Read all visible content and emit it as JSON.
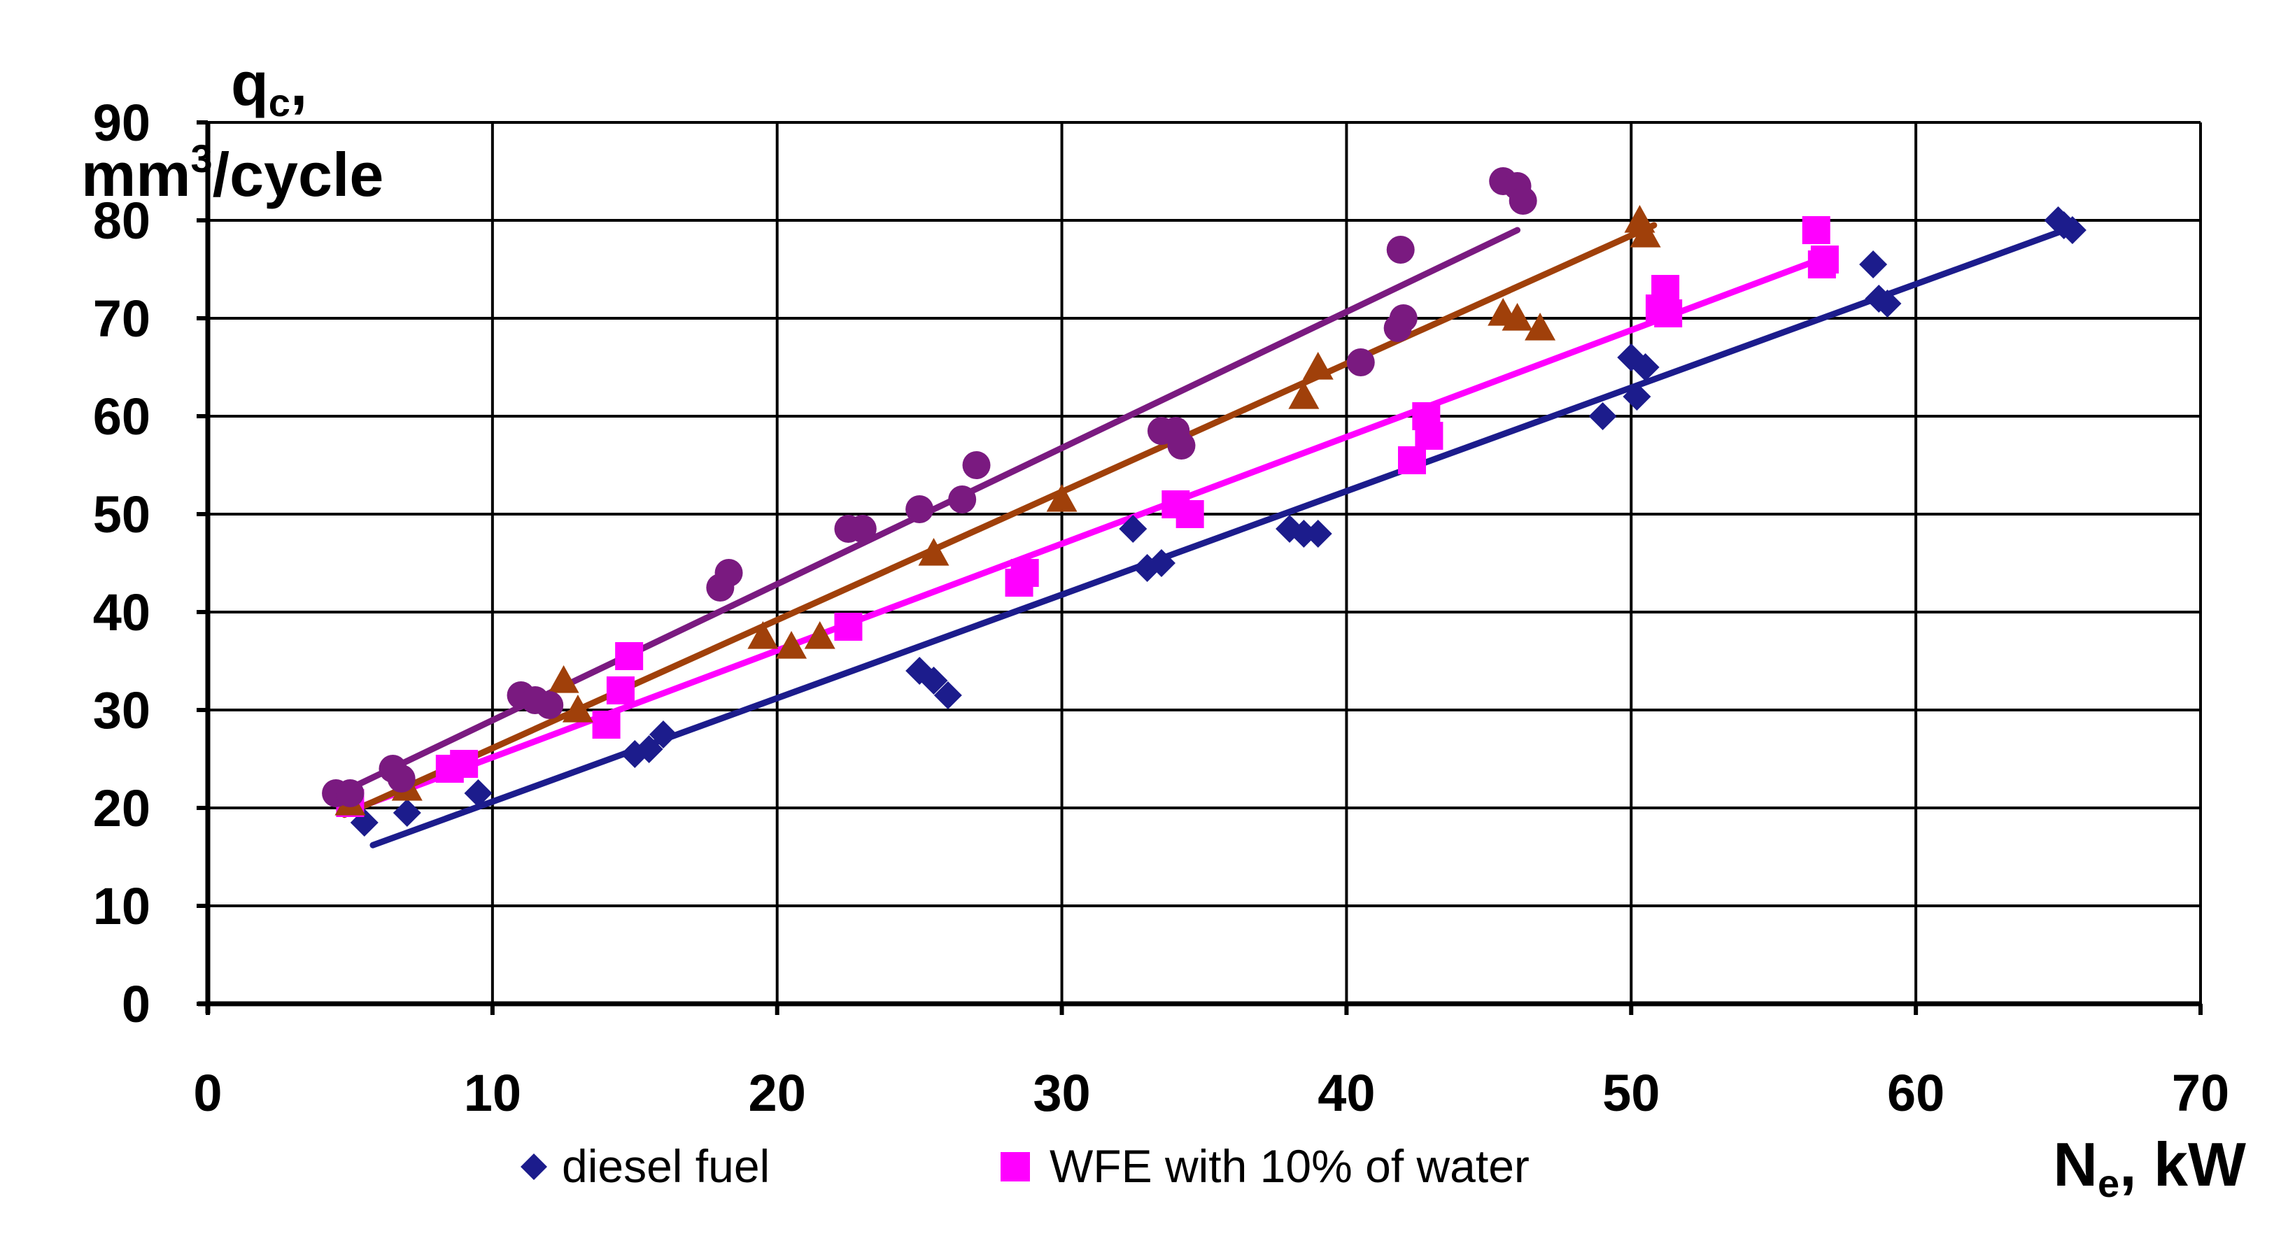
{
  "chart_data": {
    "type": "scatter",
    "title": "",
    "ylabel": {
      "symbol": "q",
      "subscript": "c",
      "suffix": ",",
      "unit_prefix": "mm",
      "unit_sup": "3",
      "unit_suffix": "/cycle"
    },
    "xlabel": {
      "symbol": "N",
      "subscript": "e",
      "suffix": ", kW"
    },
    "xlim": [
      0,
      70
    ],
    "ylim": [
      0,
      90
    ],
    "x_ticks": [
      0,
      10,
      20,
      30,
      40,
      50,
      60,
      70
    ],
    "y_ticks": [
      0,
      10,
      20,
      30,
      40,
      50,
      60,
      70,
      80,
      90
    ],
    "grid": true,
    "series": [
      {
        "name": "diesel fuel",
        "marker": "diamond",
        "color": "#1c1c8c",
        "points": [
          [
            5.5,
            18.5
          ],
          [
            7,
            19.5
          ],
          [
            9.5,
            21.5
          ],
          [
            15,
            25.5
          ],
          [
            15.5,
            26
          ],
          [
            16,
            27.5
          ],
          [
            25,
            34
          ],
          [
            25.5,
            33
          ],
          [
            26,
            31.5
          ],
          [
            32.5,
            48.5
          ],
          [
            33,
            44.5
          ],
          [
            33.5,
            45
          ],
          [
            38,
            48.5
          ],
          [
            38.5,
            48
          ],
          [
            39,
            48
          ],
          [
            49,
            60
          ],
          [
            50,
            66
          ],
          [
            50.2,
            62
          ],
          [
            50.5,
            65
          ],
          [
            58.5,
            75.5
          ],
          [
            58.7,
            72
          ],
          [
            59,
            71.5
          ],
          [
            65,
            80
          ],
          [
            65.2,
            79.5
          ],
          [
            65.5,
            79
          ]
        ],
        "trend": [
          [
            5.8,
            16.2
          ],
          [
            65.5,
            79.3
          ]
        ]
      },
      {
        "name": "WFE with 10% of water",
        "marker": "square",
        "color": "#ff00ff",
        "points": [
          [
            5,
            20.5
          ],
          [
            8.5,
            24
          ],
          [
            9,
            24.5
          ],
          [
            14,
            28.5
          ],
          [
            14.5,
            32
          ],
          [
            14.8,
            35.5
          ],
          [
            22.5,
            38.5
          ],
          [
            28.5,
            43
          ],
          [
            28.7,
            44
          ],
          [
            34,
            51
          ],
          [
            34.5,
            50
          ],
          [
            42.3,
            55.5
          ],
          [
            42.8,
            60
          ],
          [
            42.9,
            58
          ],
          [
            51,
            71
          ],
          [
            51.2,
            73
          ],
          [
            51.3,
            70.5
          ],
          [
            56.5,
            79
          ],
          [
            56.7,
            75.5
          ],
          [
            56.8,
            76
          ]
        ],
        "trend": [
          [
            4.8,
            19.5
          ],
          [
            56.8,
            76.2
          ]
        ]
      },
      {
        "name": "",
        "marker": "triangle",
        "color": "#a0400a",
        "points": [
          [
            5,
            20.5
          ],
          [
            7,
            22
          ],
          [
            12.5,
            33
          ],
          [
            13,
            30
          ],
          [
            19.5,
            37.5
          ],
          [
            20.5,
            36.5
          ],
          [
            21.5,
            37.5
          ],
          [
            25.5,
            46
          ],
          [
            30,
            51.5
          ],
          [
            38.5,
            62
          ],
          [
            39,
            65
          ],
          [
            45.5,
            70.5
          ],
          [
            46,
            70
          ],
          [
            46.8,
            69
          ],
          [
            50.3,
            80
          ],
          [
            50.5,
            78.5
          ]
        ],
        "trend": [
          [
            4.8,
            19.3
          ],
          [
            50.8,
            79.5
          ]
        ]
      },
      {
        "name": "",
        "marker": "circle",
        "color": "#7a1a80",
        "points": [
          [
            4.5,
            21.5
          ],
          [
            5,
            21.5
          ],
          [
            6.5,
            24
          ],
          [
            6.8,
            23
          ],
          [
            11,
            31.5
          ],
          [
            11.5,
            31
          ],
          [
            12,
            30.5
          ],
          [
            18,
            42.5
          ],
          [
            18.3,
            44
          ],
          [
            22.5,
            48.5
          ],
          [
            23,
            48.5
          ],
          [
            25,
            50.5
          ],
          [
            26.5,
            51.5
          ],
          [
            27,
            55
          ],
          [
            33.5,
            58.5
          ],
          [
            34,
            58.5
          ],
          [
            34.2,
            57
          ],
          [
            40.5,
            65.5
          ],
          [
            41.8,
            69
          ],
          [
            41.9,
            77
          ],
          [
            42,
            70
          ],
          [
            45.5,
            84
          ],
          [
            46,
            83.5
          ],
          [
            46.2,
            82
          ]
        ],
        "trend": [
          [
            5,
            22
          ],
          [
            46,
            79
          ]
        ]
      }
    ],
    "legend": [
      "diesel fuel",
      "WFE with 10% of water"
    ],
    "legend_position": "bottom"
  }
}
